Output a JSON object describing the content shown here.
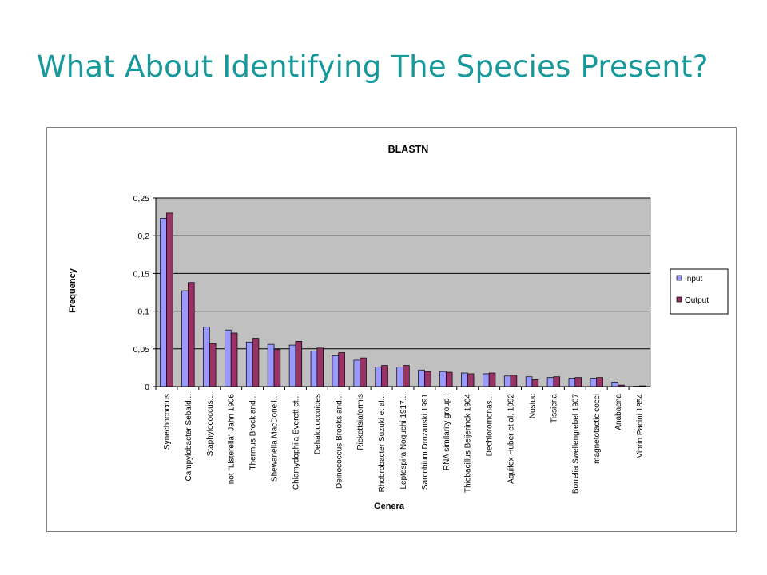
{
  "slide": {
    "title": "What About Identifying The Species Present?"
  },
  "colors": {
    "title": "#17999b",
    "plot_background": "#c0c0c0",
    "input_series": "#9999ff",
    "output_series": "#993366"
  },
  "chart_data": {
    "type": "bar",
    "title": "BLASTN",
    "xlabel": "Genera",
    "ylabel": "Frequency",
    "ylim": [
      0,
      0.25
    ],
    "yticks": [
      "0",
      "0,05",
      "0,1",
      "0,15",
      "0,2",
      "0,25"
    ],
    "grid": true,
    "legend_position": "right",
    "categories": [
      "Synechococcus",
      "Campylobacter Sebald...",
      "Staphylococcus...",
      "not \"Listerella\" Jahn 1906",
      "Thermus Brock and...",
      "Shewanella MacDonell...",
      "Chlamydophila Everett et...",
      "Dehalococcoides",
      "Deinococcus Brooks and...",
      "Rickettsiaformis",
      "Rhobrobacter Suzuki et al...",
      "Leptospira Noguchi 1917...",
      "Sarcobium Drozanski 1991",
      "RNA similarity group I",
      "Thiobacillus Beijerinck 1904",
      "Dechloromonas...",
      "Aquifex Huber et al. 1992",
      "Nostoc",
      "Tissieria",
      "Borrelia Swellengrebel 1907",
      "magnetotactic cocci",
      "Anabaena",
      "Vibrio Pacini 1854"
    ],
    "series": [
      {
        "name": "Input",
        "values": [
          0.223,
          0.127,
          0.079,
          0.075,
          0.059,
          0.056,
          0.055,
          0.047,
          0.041,
          0.035,
          0.026,
          0.026,
          0.022,
          0.02,
          0.018,
          0.017,
          0.014,
          0.013,
          0.012,
          0.011,
          0.011,
          0.006,
          0.0005
        ]
      },
      {
        "name": "Output",
        "values": [
          0.23,
          0.138,
          0.057,
          0.071,
          0.064,
          0.049,
          0.06,
          0.051,
          0.045,
          0.038,
          0.028,
          0.028,
          0.02,
          0.019,
          0.017,
          0.018,
          0.015,
          0.009,
          0.013,
          0.012,
          0.012,
          0.002,
          0.001
        ]
      }
    ]
  }
}
